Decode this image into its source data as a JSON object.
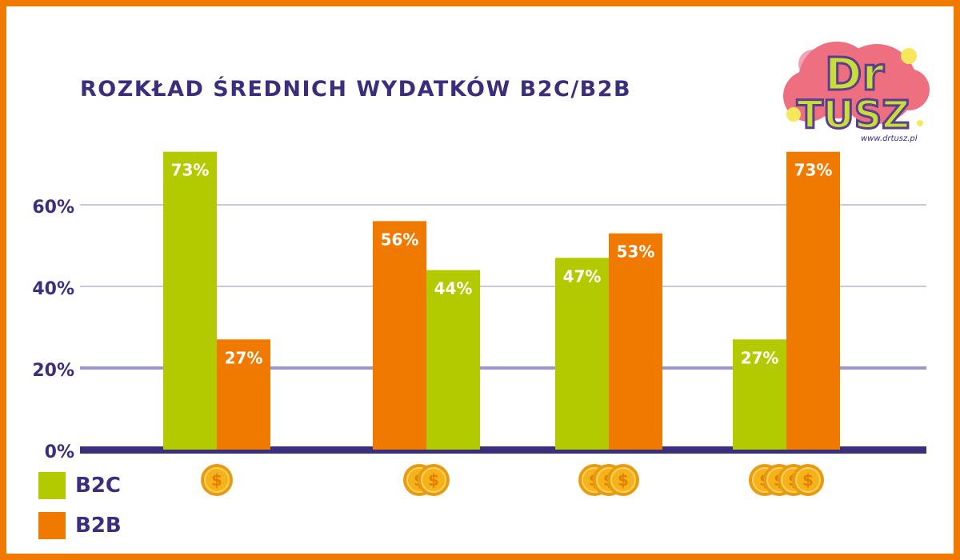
{
  "colors": {
    "b2c": "#b3c900",
    "b2b": "#f07a00",
    "axis": "#3a2f7d",
    "grid": "#c9c6e4",
    "gridStrong": "#9c98cf",
    "text": "#3a2f7d",
    "frame": "#f07a00",
    "coin": "#f6b21b"
  },
  "chart_data": {
    "type": "bar",
    "title": "ROZKŁAD ŚREDNICH WYDATKÓW B2C/B2B",
    "categories": [
      "1-coin-icon",
      "2-coin-icon",
      "3-coin-icon",
      "4-coin-icon"
    ],
    "series": [
      {
        "name": "B2C",
        "values": [
          73,
          44,
          47,
          27
        ],
        "labels": [
          "73%",
          "44%",
          "47%",
          "27%"
        ]
      },
      {
        "name": "B2B",
        "values": [
          27,
          56,
          53,
          73
        ],
        "labels": [
          "27%",
          "56%",
          "53%",
          "73%"
        ]
      }
    ],
    "bar_order": [
      [
        "B2C",
        "B2B"
      ],
      [
        "B2B",
        "B2C"
      ],
      [
        "B2C",
        "B2B"
      ],
      [
        "B2C",
        "B2B"
      ]
    ],
    "y_ticks": [
      "0%",
      "20%",
      "40%",
      "60%"
    ],
    "ylim": [
      0,
      73
    ],
    "grid": true,
    "legend": "bottom-left",
    "coin_counts": [
      1,
      2,
      3,
      4
    ]
  },
  "legend": [
    {
      "label": "B2C"
    },
    {
      "label": "B2B"
    }
  ],
  "logo": {
    "text_top": "Dr",
    "text_bottom": "TUSZ",
    "url": "www.drtusz.pl"
  }
}
